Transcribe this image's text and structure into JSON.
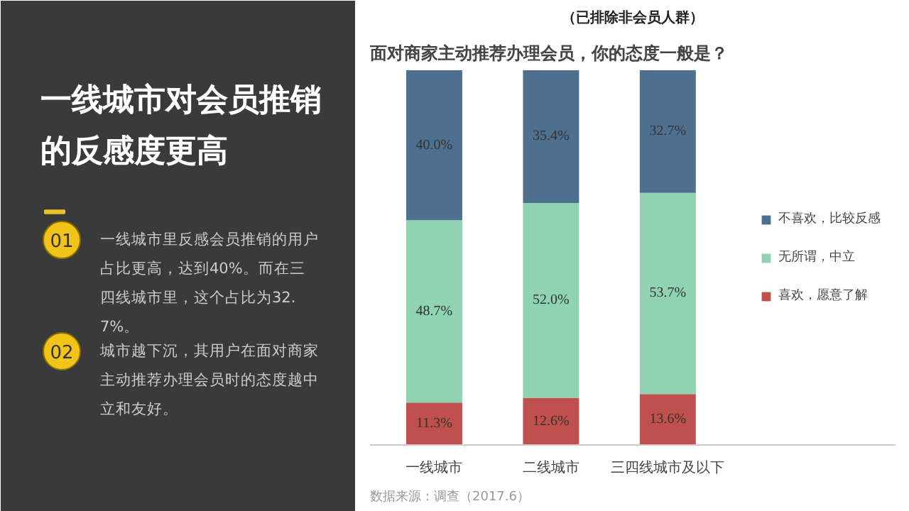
{
  "chart_data": {
    "type": "bar",
    "stacked": true,
    "title": "面对商家主动推荐办理会员，你的态度一般是？",
    "subtitle": "（已排除非会员人群）",
    "categories": [
      "一线城市",
      "二线城市",
      "三四线城市及以下"
    ],
    "series": [
      {
        "name": "喜欢，愿意了解",
        "color": "#c0504d",
        "values": [
          11.3,
          12.6,
          13.6
        ],
        "value_labels": [
          "11.3%",
          "12.6%",
          "13.6%"
        ]
      },
      {
        "name": "无所谓，中立",
        "color": "#8fd3b2",
        "values": [
          48.7,
          52.0,
          53.7
        ],
        "value_labels": [
          "48.7%",
          "52.0%",
          "53.7%"
        ]
      },
      {
        "name": "不喜欢，比较反感",
        "color": "#4f6f8f",
        "values": [
          40.0,
          35.4,
          32.7
        ],
        "value_labels": [
          "40.0%",
          "35.4%",
          "32.7%"
        ]
      }
    ],
    "legend": "right",
    "grid": false,
    "annotations": [
      "一线城市对会员推销的反感度更高",
      "01",
      "一线城市里反感会员推销的用户占比更高，达到40%。而在三四线城市里，这个占比为32.7%。",
      "02",
      "城市越下沉，其用户在面对商家主动推荐办理会员时的态度越中立和友好。",
      "数据来源：调查（2017.6）"
    ]
  }
}
